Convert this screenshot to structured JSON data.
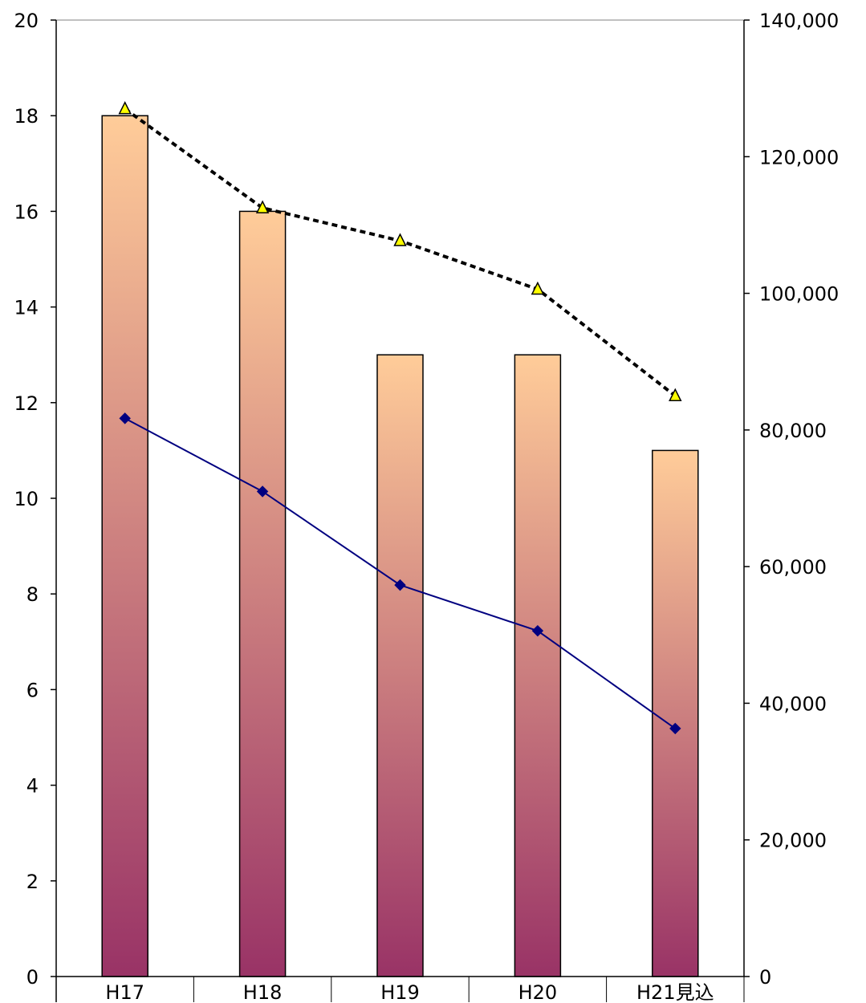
{
  "chart_data": {
    "type": "bar",
    "categories": [
      "H17",
      "H18",
      "H19",
      "H20",
      "H21見込"
    ],
    "left_axis": {
      "ylim": [
        0,
        20
      ],
      "ticks": [
        "0",
        "2",
        "4",
        "6",
        "8",
        "10",
        "12",
        "14",
        "16",
        "18",
        "20"
      ]
    },
    "right_axis": {
      "ylim": [
        0,
        140000
      ],
      "ticks": [
        "0",
        "20,000",
        "40,000",
        "60,000",
        "80,000",
        "100,000",
        "120,000",
        "140,000"
      ]
    },
    "series": [
      {
        "type": "bar",
        "axis": "left",
        "values": [
          18,
          16,
          13,
          13,
          11
        ]
      },
      {
        "type": "line",
        "axis": "right",
        "style": "solid",
        "marker": "diamond",
        "color": "#000080",
        "values": [
          81700,
          71000,
          57300,
          50600,
          36300
        ]
      },
      {
        "type": "line",
        "axis": "right",
        "style": "dotted",
        "marker": "triangle",
        "color": "#000000",
        "marker_color": "#ffff00",
        "values": [
          127000,
          112500,
          107700,
          100600,
          85000
        ]
      }
    ],
    "bar_gradient": {
      "top": "#ffcc99",
      "bottom": "#993366"
    },
    "grid": false,
    "legend": "none"
  }
}
